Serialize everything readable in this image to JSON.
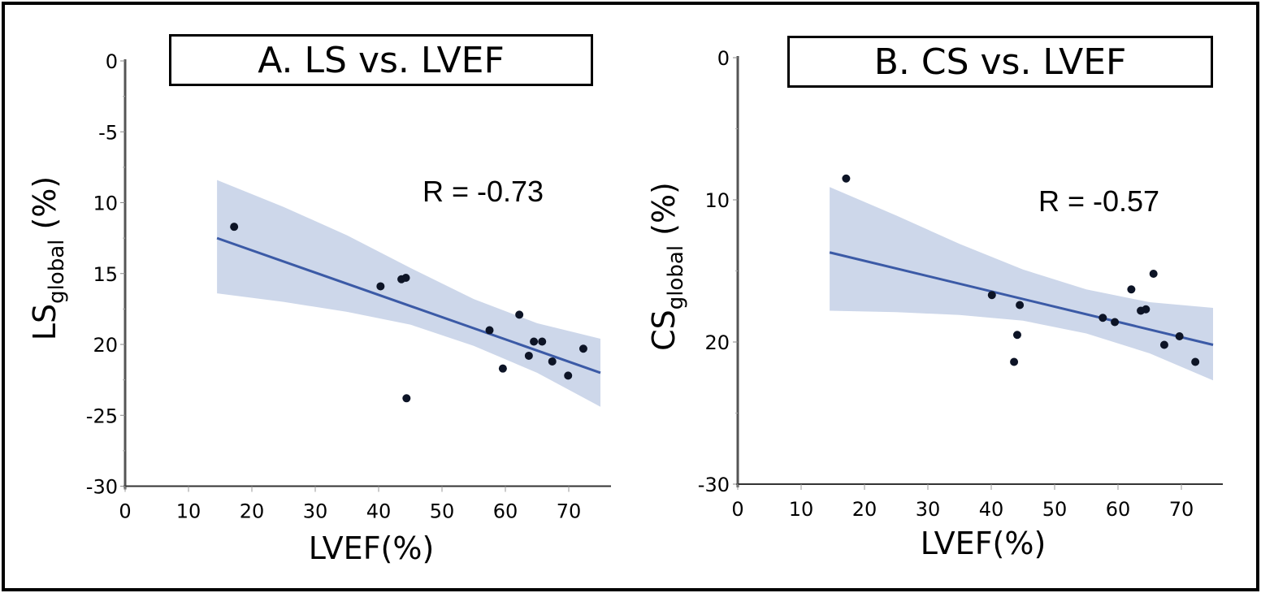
{
  "colors": {
    "band": "#cdd7ea",
    "fit_line": "#3b5aa6",
    "points": "#0d1426",
    "axis": "#555555"
  },
  "chart_data": [
    {
      "type": "scatter",
      "panel": "A",
      "title": "A. LS vs. LVEF",
      "xlabel": "LVEF(%)",
      "ylabel_main": "LS",
      "ylabel_sub": "global",
      "ylabel_unit": " (%)",
      "annotation": "R = -0.73",
      "xlim": [
        0,
        76
      ],
      "ylim": [
        0,
        30
      ],
      "x_ticks": [
        0,
        10,
        20,
        30,
        40,
        50,
        60,
        70
      ],
      "x_tick_labels": [
        "0",
        "10",
        "20",
        "30",
        "40",
        "50",
        "60",
        "70"
      ],
      "y_ticks": [
        0,
        5,
        10,
        15,
        20,
        25,
        30
      ],
      "y_tick_labels": [
        "0",
        "-5",
        "10",
        "15",
        "20",
        "-25",
        "-30"
      ],
      "points": [
        {
          "x": 17.2,
          "y": 11.7
        },
        {
          "x": 40.3,
          "y": 15.9
        },
        {
          "x": 43.6,
          "y": 15.4
        },
        {
          "x": 44.3,
          "y": 15.3
        },
        {
          "x": 44.4,
          "y": 23.8
        },
        {
          "x": 57.5,
          "y": 19.0
        },
        {
          "x": 59.6,
          "y": 21.7
        },
        {
          "x": 62.2,
          "y": 17.9
        },
        {
          "x": 63.7,
          "y": 20.8
        },
        {
          "x": 64.5,
          "y": 19.8
        },
        {
          "x": 65.8,
          "y": 19.8
        },
        {
          "x": 67.4,
          "y": 21.2
        },
        {
          "x": 69.9,
          "y": 22.2
        },
        {
          "x": 72.3,
          "y": 20.3
        }
      ],
      "fit_line": {
        "x": [
          14.5,
          75
        ],
        "y": [
          12.5,
          22.0
        ]
      },
      "confidence_band": {
        "x": [
          14.5,
          25,
          35,
          45,
          55,
          65,
          75
        ],
        "upper": [
          8.4,
          10.3,
          12.3,
          14.6,
          16.8,
          18.5,
          19.6
        ],
        "lower": [
          16.4,
          17.0,
          17.7,
          18.6,
          20.1,
          22.0,
          24.4
        ]
      }
    },
    {
      "type": "scatter",
      "panel": "B",
      "title": "B. CS vs. LVEF",
      "xlabel": "LVEF(%)",
      "ylabel_main": "CS",
      "ylabel_sub": "global",
      "ylabel_unit": " (%)",
      "annotation": "R = -0.57",
      "xlim": [
        0,
        76
      ],
      "ylim": [
        0,
        30
      ],
      "x_ticks": [
        0,
        10,
        20,
        30,
        40,
        50,
        60,
        70
      ],
      "x_tick_labels": [
        "0",
        "10",
        "20",
        "30",
        "40",
        "50",
        "60",
        "70"
      ],
      "y_ticks": [
        0,
        10,
        20,
        30
      ],
      "y_tick_labels": [
        "0",
        "10",
        "20",
        "-30"
      ],
      "points": [
        {
          "x": 17.1,
          "y": 8.5
        },
        {
          "x": 40.1,
          "y": 16.7
        },
        {
          "x": 44.5,
          "y": 17.4
        },
        {
          "x": 44.1,
          "y": 19.5
        },
        {
          "x": 43.6,
          "y": 21.4
        },
        {
          "x": 57.6,
          "y": 18.3
        },
        {
          "x": 59.5,
          "y": 18.6
        },
        {
          "x": 62.1,
          "y": 16.3
        },
        {
          "x": 63.6,
          "y": 17.8
        },
        {
          "x": 64.4,
          "y": 17.7
        },
        {
          "x": 65.6,
          "y": 15.2
        },
        {
          "x": 67.3,
          "y": 20.2
        },
        {
          "x": 69.7,
          "y": 19.6
        },
        {
          "x": 72.2,
          "y": 21.4
        }
      ],
      "fit_line": {
        "x": [
          14.5,
          75
        ],
        "y": [
          13.7,
          20.2
        ]
      },
      "confidence_band": {
        "x": [
          14.5,
          25,
          35,
          45,
          55,
          65,
          75
        ],
        "upper": [
          9.1,
          11.1,
          13.1,
          14.9,
          16.3,
          17.2,
          17.6
        ],
        "lower": [
          17.8,
          17.9,
          18.1,
          18.5,
          19.4,
          20.8,
          22.7
        ]
      }
    }
  ]
}
